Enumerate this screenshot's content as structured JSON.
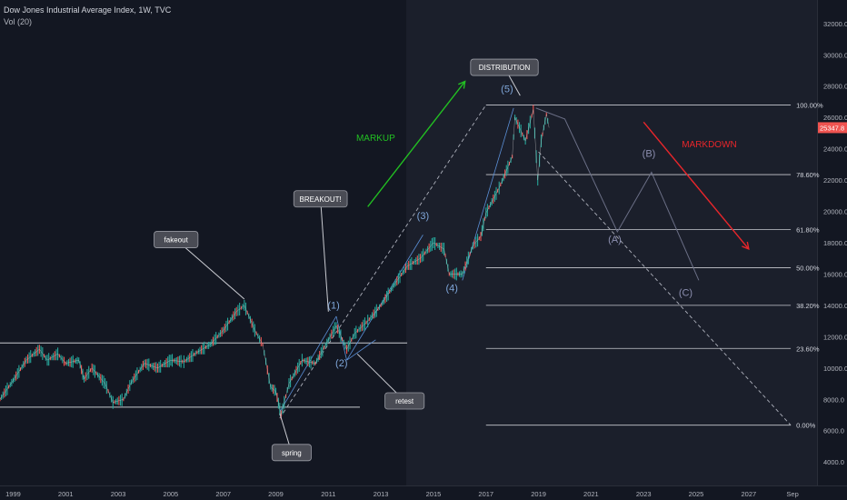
{
  "header": {
    "title": "Dow Jones Industrial Average Index, 1W, TVC",
    "indicator": "Vol (20)"
  },
  "chart_data": {
    "type": "line",
    "y_axis": {
      "ticks": [
        4000,
        6000,
        8000,
        10000,
        12000,
        14000,
        16000,
        18000,
        20000,
        22000,
        24000,
        26000,
        28000,
        30000,
        32000
      ],
      "tick_labels": [
        "4000.0",
        "6000.0",
        "8000.0",
        "10000.0",
        "12000.0",
        "14000.0",
        "16000.0",
        "18000.0",
        "20000.0",
        "22000.0",
        "24000.0",
        "26000.0",
        "28000.0",
        "30000.0",
        "32000.0"
      ],
      "ylim": [
        2500,
        33500
      ]
    },
    "x_axis": {
      "ticks": [
        1999,
        2001,
        2003,
        2005,
        2007,
        2009,
        2011,
        2013,
        2015,
        2017,
        2019,
        2021,
        2023,
        2025,
        2027,
        2028.67
      ],
      "tick_labels": [
        "1999",
        "2001",
        "2003",
        "2005",
        "2007",
        "2009",
        "2011",
        "2013",
        "2015",
        "2017",
        "2019",
        "2021",
        "2023",
        "2025",
        "2027",
        "Sep"
      ],
      "xlim": [
        1998.5,
        2029.6
      ]
    },
    "price_badge": {
      "value": 25347.8,
      "label": "25347.8",
      "color": "#ef5350"
    },
    "series": [
      {
        "x": [
          1998.5,
          1999,
          1999.5,
          2000,
          2000.3,
          2000.7,
          2001,
          2001.5,
          2001.7,
          2002,
          2002.5,
          2002.8,
          2003.2,
          2003.5,
          2004,
          2004.5,
          2005,
          2005.5,
          2006,
          2006.5,
          2007,
          2007.5,
          2007.8,
          2008.2,
          2008.5,
          2008.8,
          2009.0,
          2009.2,
          2009.5,
          2010,
          2010.5,
          2011,
          2011.3,
          2011.7,
          2012,
          2012.5,
          2013,
          2013.5,
          2014,
          2014.5,
          2015,
          2015.4,
          2015.6,
          2016.1,
          2016.5,
          2016.8,
          2017,
          2017.5,
          2018,
          2018.1,
          2018.5,
          2018.8,
          2018.97,
          2019.1,
          2019.3,
          2019.4
        ],
        "y": [
          8000,
          9200,
          10500,
          11200,
          10500,
          10900,
          10300,
          10500,
          9300,
          10000,
          9000,
          7800,
          8000,
          9100,
          10300,
          10000,
          10500,
          10400,
          11000,
          11500,
          12400,
          13600,
          14000,
          12400,
          11500,
          8800,
          8500,
          7000,
          9000,
          10500,
          10300,
          11800,
          12700,
          11200,
          12200,
          13000,
          14000,
          15300,
          16500,
          17000,
          18000,
          17600,
          16000,
          16000,
          17800,
          18400,
          19900,
          21500,
          23500,
          26000,
          24500,
          26500,
          22000,
          24500,
          26200,
          25347.8
        ]
      }
    ],
    "fib_levels": [
      {
        "label": "100.00%",
        "value": 26800
      },
      {
        "label": "78.60%",
        "value": 22350
      },
      {
        "label": "61.80%",
        "value": 18850
      },
      {
        "label": "50.00%",
        "value": 16400
      },
      {
        "label": "38.20%",
        "value": 14000
      },
      {
        "label": "23.60%",
        "value": 11250
      },
      {
        "label": "0.00%",
        "value": 6350
      }
    ],
    "range_lines": [
      {
        "value": 11600
      },
      {
        "value": 7500
      }
    ],
    "wave_labels": [
      {
        "text": "(1)",
        "x": 2011.2,
        "y": 13800
      },
      {
        "text": "(2)",
        "x": 2011.5,
        "y": 10100
      },
      {
        "text": "(3)",
        "x": 2014.6,
        "y": 19500
      },
      {
        "text": "(4)",
        "x": 2015.7,
        "y": 14900
      },
      {
        "text": "(5)",
        "x": 2017.8,
        "y": 27600
      },
      {
        "text": "(A)",
        "x": 2021.9,
        "y": 18000
      },
      {
        "text": "(B)",
        "x": 2023.2,
        "y": 23500
      },
      {
        "text": "(C)",
        "x": 2024.6,
        "y": 14600
      }
    ],
    "callouts": [
      {
        "text": "fakeout",
        "x": 2005.2,
        "y": 18200
      },
      {
        "text": "BREAKOUT!",
        "x": 2010.7,
        "y": 20800
      },
      {
        "text": "spring",
        "x": 2009.6,
        "y": 4600
      },
      {
        "text": "retest",
        "x": 2013.9,
        "y": 7900
      },
      {
        "text": "DISTRIBUTION",
        "x": 2017.7,
        "y": 29200
      }
    ],
    "phase_labels": [
      {
        "text": "MARKUP",
        "x": 2012.8,
        "y": 24500,
        "color": "#22c022"
      },
      {
        "text": "MARKDOWN",
        "x": 2025.5,
        "y": 24100,
        "color": "#e8262b"
      }
    ],
    "grid": false,
    "legend": "none"
  }
}
